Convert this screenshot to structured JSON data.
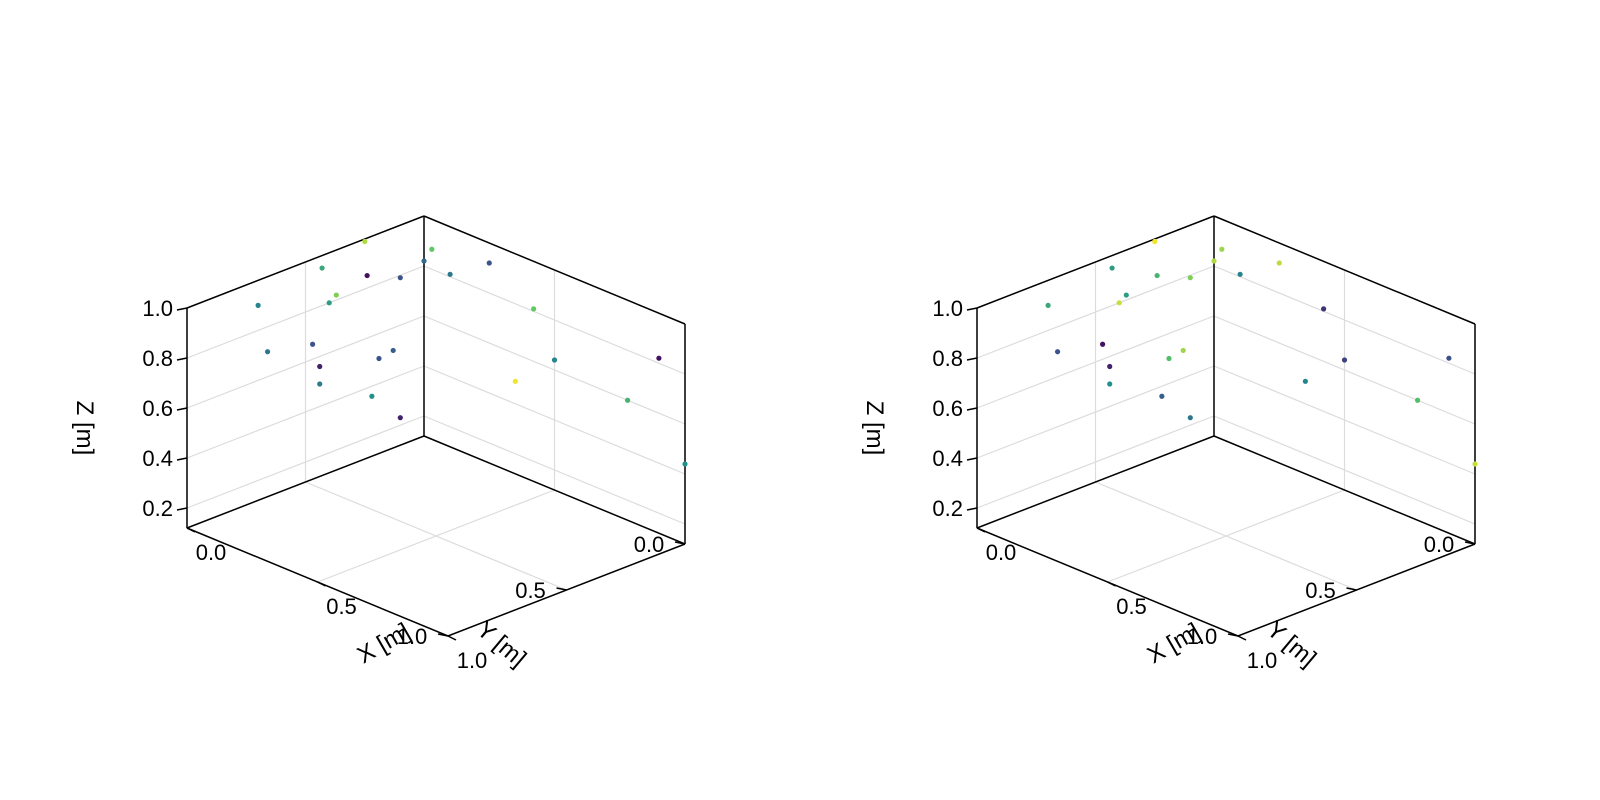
{
  "chart_data": [
    {
      "type": "scatter",
      "title": "",
      "xlabel": "X [m]",
      "ylabel": "Y [m]",
      "zlabel": "Z [m]",
      "xlim": [
        0,
        1
      ],
      "ylim": [
        0,
        1
      ],
      "zlim": [
        0.12,
        1.0
      ],
      "xticks": [
        "0.0",
        "0.5",
        "1.0"
      ],
      "yticks": [
        "0.0",
        "0.5",
        "1.0"
      ],
      "zticks": [
        "0.2",
        "0.4",
        "0.6",
        "0.8",
        "1.0"
      ],
      "colormap": "viridis",
      "grid": true,
      "points": [
        {
          "x": 0.0,
          "y": 0.7,
          "z": 0.9,
          "c": 0.45
        },
        {
          "x": 0.0,
          "y": 0.43,
          "z": 0.95,
          "c": 0.6
        },
        {
          "x": 0.0,
          "y": 0.25,
          "z": 0.99,
          "c": 0.88
        },
        {
          "x": 0.0,
          "y": 0.37,
          "z": 0.82,
          "c": 0.8
        },
        {
          "x": 0.0,
          "y": 0.4,
          "z": 0.8,
          "c": 0.55
        },
        {
          "x": 0.0,
          "y": 0.24,
          "z": 0.85,
          "c": 0.05
        },
        {
          "x": 0.0,
          "y": 0.1,
          "z": 0.79,
          "c": 0.25
        },
        {
          "x": 0.0,
          "y": 0.66,
          "z": 0.7,
          "c": 0.4
        },
        {
          "x": 0.0,
          "y": 0.47,
          "z": 0.66,
          "c": 0.25
        },
        {
          "x": 0.0,
          "y": 0.44,
          "z": 0.56,
          "c": 0.1
        },
        {
          "x": 0.0,
          "y": 0.44,
          "z": 0.49,
          "c": 0.42
        },
        {
          "x": 0.0,
          "y": 0.19,
          "z": 0.5,
          "c": 0.25
        },
        {
          "x": 0.0,
          "y": 0.13,
          "z": 0.51,
          "c": 0.3
        },
        {
          "x": 0.0,
          "y": 0.22,
          "z": 0.36,
          "c": 0.5
        },
        {
          "x": 0.0,
          "y": 0.0,
          "z": 0.82,
          "c": 0.35
        },
        {
          "x": 0.0,
          "y": 0.1,
          "z": 0.23,
          "c": 0.1
        },
        {
          "x": 0.03,
          "y": 0.0,
          "z": 0.88,
          "c": 0.75
        },
        {
          "x": 0.25,
          "y": 0.0,
          "z": 0.92,
          "c": 0.25
        },
        {
          "x": 0.1,
          "y": 0.0,
          "z": 0.81,
          "c": 0.4
        },
        {
          "x": 0.42,
          "y": 0.0,
          "z": 0.81,
          "c": 0.75
        },
        {
          "x": 0.5,
          "y": 0.0,
          "z": 0.64,
          "c": 0.45
        },
        {
          "x": 0.35,
          "y": 0.0,
          "z": 0.49,
          "c": 0.98
        },
        {
          "x": 0.9,
          "y": 0.0,
          "z": 0.82,
          "c": 0.05
        },
        {
          "x": 0.78,
          "y": 0.0,
          "z": 0.6,
          "c": 0.65
        },
        {
          "x": 1.0,
          "y": 0.0,
          "z": 0.44,
          "c": 0.5
        }
      ]
    },
    {
      "type": "scatter",
      "title": "",
      "xlabel": "X [m]",
      "ylabel": "Y [m]",
      "zlabel": "Z [m]",
      "xlim": [
        0,
        1
      ],
      "ylim": [
        0,
        1
      ],
      "zlim": [
        0.12,
        1.0
      ],
      "xticks": [
        "0.0",
        "0.5",
        "1.0"
      ],
      "yticks": [
        "0.0",
        "0.5",
        "1.0"
      ],
      "zticks": [
        "0.2",
        "0.4",
        "0.6",
        "0.8",
        "1.0"
      ],
      "colormap": "viridis",
      "grid": true,
      "points": [
        {
          "x": 0.0,
          "y": 0.7,
          "z": 0.9,
          "c": 0.6
        },
        {
          "x": 0.0,
          "y": 0.43,
          "z": 0.95,
          "c": 0.55
        },
        {
          "x": 0.0,
          "y": 0.25,
          "z": 0.99,
          "c": 0.98
        },
        {
          "x": 0.0,
          "y": 0.37,
          "z": 0.82,
          "c": 0.55
        },
        {
          "x": 0.0,
          "y": 0.4,
          "z": 0.8,
          "c": 0.92
        },
        {
          "x": 0.0,
          "y": 0.24,
          "z": 0.85,
          "c": 0.65
        },
        {
          "x": 0.0,
          "y": 0.1,
          "z": 0.79,
          "c": 0.8
        },
        {
          "x": 0.0,
          "y": 0.66,
          "z": 0.7,
          "c": 0.25
        },
        {
          "x": 0.0,
          "y": 0.47,
          "z": 0.66,
          "c": 0.05
        },
        {
          "x": 0.0,
          "y": 0.44,
          "z": 0.56,
          "c": 0.1
        },
        {
          "x": 0.0,
          "y": 0.44,
          "z": 0.49,
          "c": 0.5
        },
        {
          "x": 0.0,
          "y": 0.19,
          "z": 0.5,
          "c": 0.7
        },
        {
          "x": 0.0,
          "y": 0.13,
          "z": 0.51,
          "c": 0.85
        },
        {
          "x": 0.0,
          "y": 0.22,
          "z": 0.36,
          "c": 0.3
        },
        {
          "x": 0.0,
          "y": 0.0,
          "z": 0.82,
          "c": 0.88
        },
        {
          "x": 0.0,
          "y": 0.1,
          "z": 0.23,
          "c": 0.4
        },
        {
          "x": 0.03,
          "y": 0.0,
          "z": 0.88,
          "c": 0.85
        },
        {
          "x": 0.25,
          "y": 0.0,
          "z": 0.92,
          "c": 0.9
        },
        {
          "x": 0.1,
          "y": 0.0,
          "z": 0.81,
          "c": 0.45
        },
        {
          "x": 0.42,
          "y": 0.0,
          "z": 0.81,
          "c": 0.15
        },
        {
          "x": 0.5,
          "y": 0.0,
          "z": 0.64,
          "c": 0.2
        },
        {
          "x": 0.35,
          "y": 0.0,
          "z": 0.49,
          "c": 0.45
        },
        {
          "x": 0.9,
          "y": 0.0,
          "z": 0.82,
          "c": 0.25
        },
        {
          "x": 0.78,
          "y": 0.0,
          "z": 0.6,
          "c": 0.7
        },
        {
          "x": 1.0,
          "y": 0.0,
          "z": 0.44,
          "c": 0.92
        }
      ]
    }
  ]
}
